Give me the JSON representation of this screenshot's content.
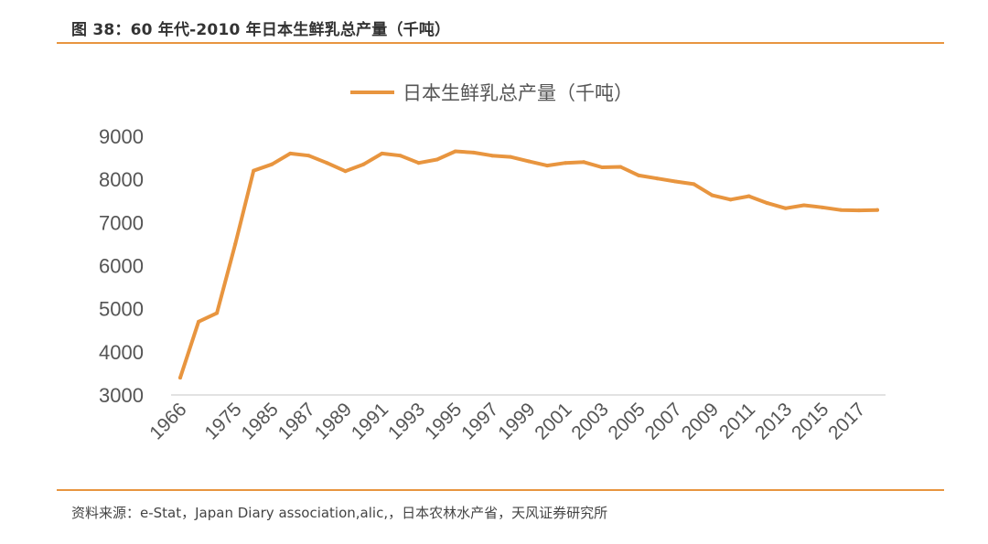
{
  "header": {
    "title": "图 38：60 年代-2010 年日本生鲜乳总产量（千吨）"
  },
  "footer": {
    "source": "资料来源：e-Stat，Japan Diary association,alic,，日本农林水产省，天风证券研究所"
  },
  "colors": {
    "accent": "#E8953F",
    "axis": "#D9D9D9",
    "text": "#555555"
  },
  "chart_data": {
    "type": "line",
    "title": "",
    "xlabel": "",
    "ylabel": "",
    "ylim": [
      3000,
      9000
    ],
    "yticks": [
      3000,
      4000,
      5000,
      6000,
      7000,
      8000,
      9000
    ],
    "legend": "top-center",
    "grid": false,
    "x": [
      "1966",
      "1970",
      "1973",
      "1975",
      "1980",
      "1985",
      "1986",
      "1987",
      "1988",
      "1989",
      "1990",
      "1991",
      "1992",
      "1993",
      "1994",
      "1995",
      "1996",
      "1997",
      "1998",
      "1999",
      "2000",
      "2001",
      "2002",
      "2003",
      "2004",
      "2005",
      "2006",
      "2007",
      "2008",
      "2009",
      "2010",
      "2011",
      "2012",
      "2013",
      "2014",
      "2015",
      "2016",
      "2017",
      "2018"
    ],
    "xtick_labels": [
      "1966",
      "1975",
      "1985",
      "1987",
      "1989",
      "1991",
      "1993",
      "1995",
      "1997",
      "1999",
      "2001",
      "2003",
      "2005",
      "2007",
      "2009",
      "2011",
      "2013",
      "2015",
      "2017"
    ],
    "series": [
      {
        "name": "日本生鲜乳总产量（千吨）",
        "color": "#E8953F",
        "values": [
          3400,
          4700,
          4900,
          6500,
          8200,
          8350,
          8600,
          8550,
          8380,
          8190,
          8350,
          8600,
          8550,
          8380,
          8460,
          8650,
          8620,
          8550,
          8520,
          8420,
          8320,
          8380,
          8400,
          8280,
          8290,
          8090,
          8020,
          7950,
          7890,
          7630,
          7530,
          7610,
          7450,
          7330,
          7400,
          7350,
          7290,
          7280,
          7290
        ]
      }
    ]
  }
}
